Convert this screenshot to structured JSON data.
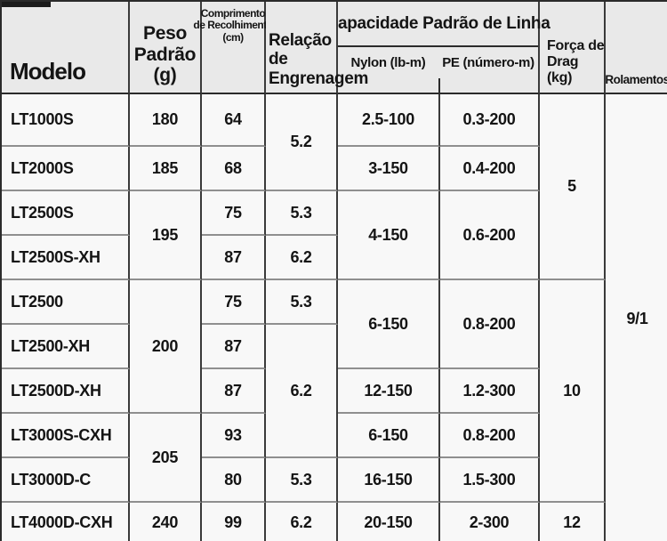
{
  "colors": {
    "header_bg": "#e9e9e9",
    "row_bg": "#f8f8f8",
    "grid_dark": "#3a3a3a",
    "grid_light": "#8f8f8f",
    "text": "#141414"
  },
  "header": {
    "modelo": "Modelo",
    "peso_l1": "Peso",
    "peso_l2": "Padrão",
    "peso_l3": "(g)",
    "comp_l1": "Comprimento",
    "comp_l2": "de Recolhimento",
    "comp_l3": "(cm)",
    "rel_l1": "Relação",
    "rel_l2": "de",
    "rel_l3": "Engrenagem",
    "capacidade": "Capacidade Padrão de Linha",
    "nylon": "Nylon (lb-m)",
    "pe": "PE (número-m)",
    "drag_l1": "Força de",
    "drag_l2": "Drag",
    "drag_l3": "(kg)",
    "rolamentos": "Rolamentos"
  },
  "cols": {
    "models": [
      "LT1000S",
      "LT2000S",
      "LT2500S",
      "LT2500S-XH",
      "LT2500",
      "LT2500-XH",
      "LT2500D-XH",
      "LT3000S-CXH",
      "LT3000D-C",
      "LT4000D-CXH"
    ],
    "peso": [
      "180",
      "185",
      "195",
      "200",
      "205",
      "240"
    ],
    "comprimento": [
      "64",
      "68",
      "75",
      "87",
      "75",
      "87",
      "87",
      "93",
      "80",
      "99"
    ],
    "relacao": [
      "5.2",
      "5.3",
      "6.2",
      "5.3",
      "6.2",
      "5.3",
      "6.2"
    ],
    "nylon": [
      "2.5-100",
      "3-150",
      "4-150",
      "6-150",
      "12-150",
      "6-150",
      "16-150",
      "20-150"
    ],
    "pe": [
      "0.3-200",
      "0.4-200",
      "0.6-200",
      "0.8-200",
      "1.2-300",
      "0.8-200",
      "1.5-300",
      "2-300"
    ],
    "drag": [
      "5",
      "10",
      "12"
    ],
    "rolamentos": "9/1"
  },
  "chart_data": {
    "type": "table",
    "title": "",
    "columns": [
      "Modelo",
      "Peso Padrão (g)",
      "Comprimento de Recolhimento (cm)",
      "Relação de Engrenagem",
      "Capacidade Padrão de Linha - Nylon (lb-m)",
      "Capacidade Padrão de Linha - PE (número-m)",
      "Força de Drag (kg)",
      "Rolamentos"
    ],
    "rows": [
      [
        "LT1000S",
        "180",
        "64",
        "5.2",
        "2.5-100",
        "0.3-200",
        "5",
        "9/1"
      ],
      [
        "LT2000S",
        "185",
        "68",
        "5.2",
        "3-150",
        "0.4-200",
        "5",
        "9/1"
      ],
      [
        "LT2500S",
        "195",
        "75",
        "5.3",
        "4-150",
        "0.6-200",
        "5",
        "9/1"
      ],
      [
        "LT2500S-XH",
        "195",
        "87",
        "6.2",
        "4-150",
        "0.6-200",
        "5",
        "9/1"
      ],
      [
        "LT2500",
        "200",
        "75",
        "5.3",
        "6-150",
        "0.8-200",
        "10",
        "9/1"
      ],
      [
        "LT2500-XH",
        "200",
        "87",
        "6.2",
        "6-150",
        "0.8-200",
        "10",
        "9/1"
      ],
      [
        "LT2500D-XH",
        "200",
        "87",
        "6.2",
        "12-150",
        "1.2-300",
        "10",
        "9/1"
      ],
      [
        "LT3000S-CXH",
        "205",
        "93",
        "6.2",
        "6-150",
        "0.8-200",
        "10",
        "9/1"
      ],
      [
        "LT3000D-C",
        "205",
        "80",
        "5.3",
        "16-150",
        "1.5-300",
        "10",
        "9/1"
      ],
      [
        "LT4000D-CXH",
        "240",
        "99",
        "6.2",
        "20-150",
        "2-300",
        "12",
        "9/1"
      ]
    ]
  }
}
